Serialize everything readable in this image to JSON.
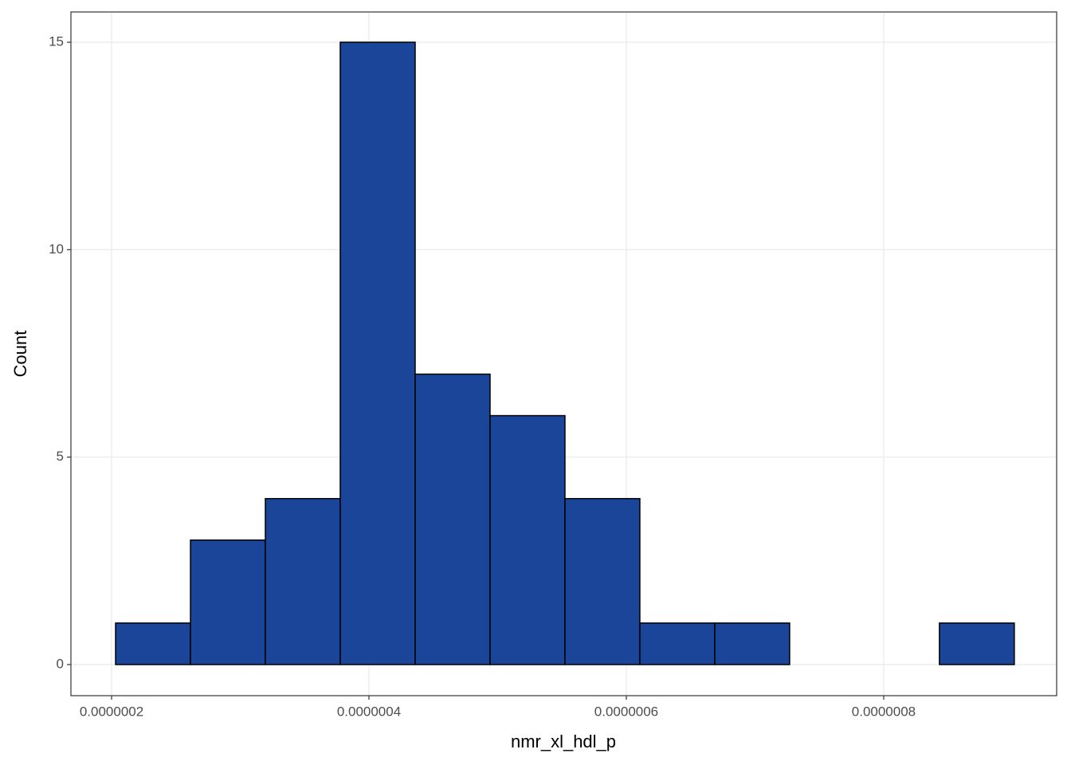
{
  "chart_data": {
    "type": "histogram",
    "x_label": "nmr_xl_hdl_p",
    "y_label": "Count",
    "bins": [
      2.031e-07,
      2.613e-07,
      3.195e-07,
      3.777e-07,
      4.359e-07,
      4.941e-07,
      5.523e-07,
      6.105e-07,
      6.687e-07,
      7.269e-07,
      7.851e-07,
      8.433e-07,
      9.015e-07
    ],
    "values": [
      1,
      3,
      4,
      15,
      7,
      6,
      4,
      1,
      1,
      0,
      0,
      1
    ],
    "color": "#1a4599",
    "xlim": [
      1.684e-07,
      9.344e-07
    ],
    "xticks": [
      {
        "value": 2e-07,
        "label": "0.0000002"
      },
      {
        "value": 4e-07,
        "label": "0.0000004"
      },
      {
        "value": 6e-07,
        "label": "0.0000006"
      },
      {
        "value": 8e-07,
        "label": "0.0000008"
      }
    ],
    "ylim": [
      -0.75,
      15.73
    ],
    "yticks": [
      0,
      5,
      10,
      15
    ],
    "grid": true
  }
}
